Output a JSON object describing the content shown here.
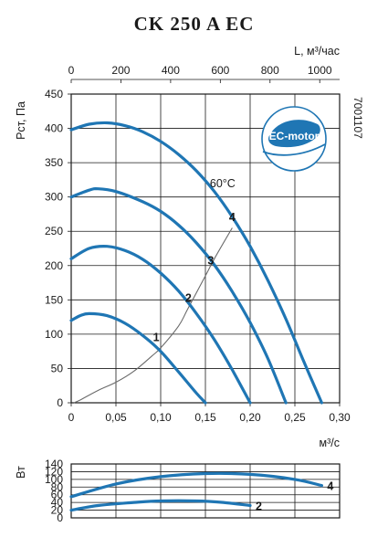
{
  "title": "CK 250 A EC",
  "code": "7001107",
  "badge": "EC-motor",
  "temp_label": "60°C",
  "colors": {
    "curve": "#1f76b4",
    "system": "#6a6a6a",
    "badge": "#1f76b4"
  },
  "chart_data": [
    {
      "type": "line",
      "xlabel": "м³/с",
      "x2label": "L, м³/час",
      "ylabel": "Pст, Па",
      "xlim": [
        0,
        0.3
      ],
      "ylim": [
        0,
        450
      ],
      "x2lim": [
        0,
        1080
      ],
      "xticks": [
        "0",
        "0,05",
        "0,10",
        "0,15",
        "0,20",
        "0,25",
        "0,30"
      ],
      "x2ticks": [
        "0",
        "200",
        "400",
        "600",
        "800",
        "1000"
      ],
      "yticks": [
        "0",
        "50",
        "100",
        "150",
        "200",
        "250",
        "300",
        "350",
        "400",
        "450"
      ],
      "grid": true,
      "series": [
        {
          "name": "1",
          "x": [
            0,
            0.01,
            0.02,
            0.04,
            0.06,
            0.08,
            0.1,
            0.12,
            0.14,
            0.15
          ],
          "y": [
            120,
            127,
            130,
            127,
            116,
            98,
            75,
            45,
            14,
            0
          ]
        },
        {
          "name": "2",
          "x": [
            0,
            0.02,
            0.04,
            0.06,
            0.08,
            0.1,
            0.12,
            0.14,
            0.16,
            0.18,
            0.2
          ],
          "y": [
            210,
            225,
            228,
            222,
            209,
            189,
            163,
            130,
            92,
            48,
            0
          ]
        },
        {
          "name": "3",
          "x": [
            0,
            0.02,
            0.03,
            0.05,
            0.08,
            0.1,
            0.12,
            0.14,
            0.16,
            0.18,
            0.2,
            0.22,
            0.24
          ],
          "y": [
            300,
            310,
            312,
            308,
            293,
            279,
            259,
            233,
            201,
            162,
            117,
            64,
            0
          ]
        },
        {
          "name": "4",
          "x": [
            0,
            0.02,
            0.04,
            0.06,
            0.08,
            0.1,
            0.12,
            0.14,
            0.16,
            0.18,
            0.2,
            0.22,
            0.24,
            0.26,
            0.28
          ],
          "y": [
            398,
            406,
            408,
            404,
            395,
            381,
            362,
            338,
            308,
            271,
            228,
            178,
            122,
            60,
            0
          ]
        }
      ],
      "system_curve": {
        "x": [
          0.01,
          0.03,
          0.05,
          0.07,
          0.09,
          0.1,
          0.12,
          0.13,
          0.15,
          0.16,
          0.18
        ],
        "y": [
          4,
          18,
          30,
          46,
          68,
          80,
          112,
          136,
          185,
          210,
          255
        ]
      }
    },
    {
      "type": "line",
      "ylabel": "Вт",
      "ylim": [
        0,
        140
      ],
      "yticks": [
        "0",
        "20",
        "40",
        "60",
        "80",
        "100",
        "120",
        "140"
      ],
      "grid": true,
      "series": [
        {
          "name": "4",
          "x": [
            0,
            0.05,
            0.1,
            0.15,
            0.2,
            0.25,
            0.28
          ],
          "y": [
            55,
            88,
            107,
            115,
            113,
            100,
            84
          ]
        },
        {
          "name": "2",
          "x": [
            0,
            0.03,
            0.07,
            0.1,
            0.14,
            0.17,
            0.2
          ],
          "y": [
            20,
            32,
            40,
            44,
            44,
            40,
            32
          ]
        }
      ]
    }
  ]
}
